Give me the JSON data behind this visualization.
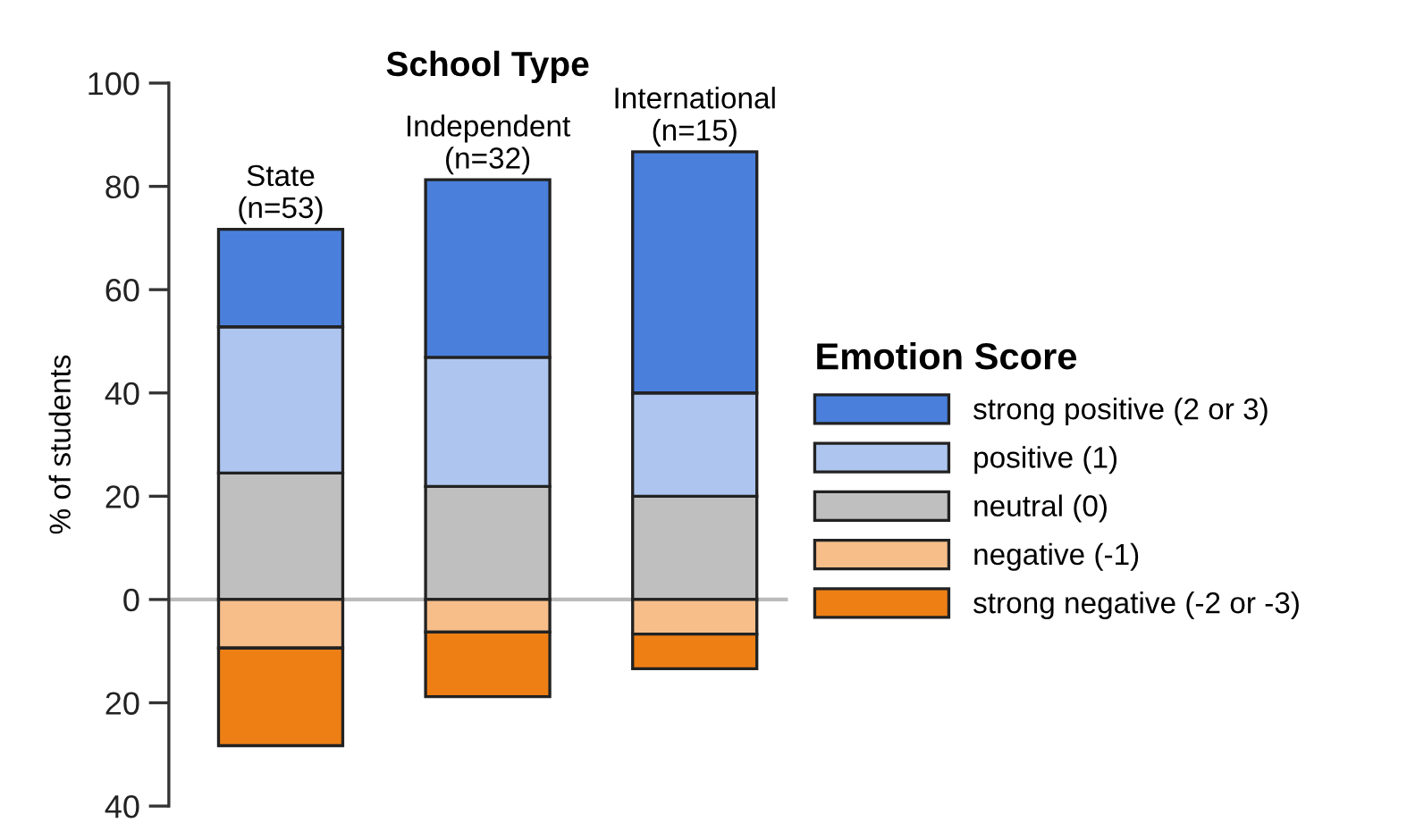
{
  "chart_data": {
    "type": "bar",
    "stacked": true,
    "title": "School Type",
    "ylabel": "% of students",
    "legend_title": "Emotion Score",
    "legend": "right",
    "categories": [
      "State\n(n=53)",
      "Independent\n(n=32)",
      "International\n(n=15)"
    ],
    "series": [
      {
        "name": "neutral (0)",
        "color": "#bfbfbf",
        "values": [
          24.5,
          21.9,
          20
        ]
      },
      {
        "name": "positive (1)",
        "color": "#aec6ef",
        "values": [
          28.3,
          25,
          20
        ]
      },
      {
        "name": "strong positive (2 or 3)",
        "color": "#4a80dc",
        "values": [
          18.9,
          34.4,
          46.7
        ]
      },
      {
        "name": "negative (-1)",
        "color": "#f7be8a",
        "values": [
          -9.4,
          -6.3,
          -6.7
        ]
      },
      {
        "name": "strong negative (-2 or -3)",
        "color": "#ee7f15",
        "values": [
          -18.9,
          -12.5,
          -6.7
        ]
      }
    ],
    "ylim": [
      -40,
      100
    ],
    "yticks": [
      {
        "value": -40,
        "label": "40"
      },
      {
        "value": -20,
        "label": "20"
      },
      0,
      20,
      40,
      60,
      80,
      100
    ],
    "tick_labels": "y",
    "ref_lines": [
      {
        "axis": "y",
        "value": 0,
        "label": null,
        "color": "#bbbbbb"
      }
    ],
    "grid": false
  }
}
